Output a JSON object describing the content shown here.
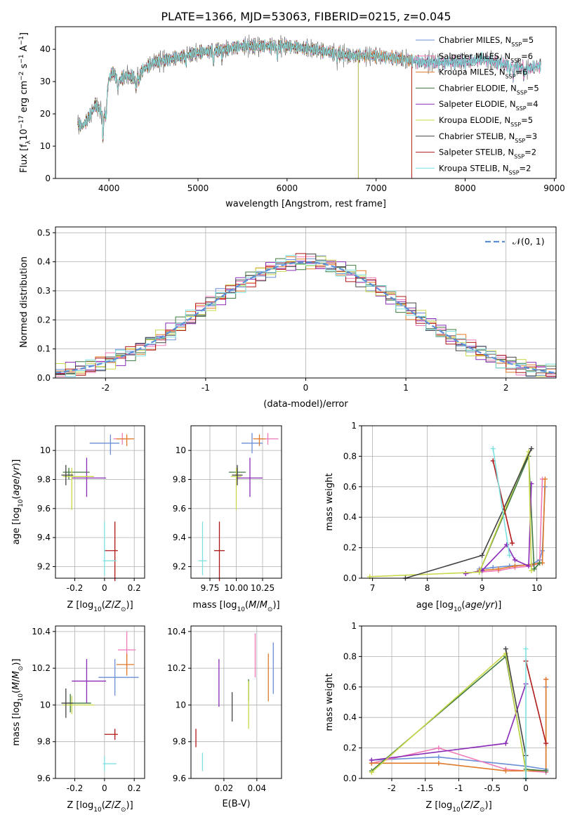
{
  "figure": {
    "title": "PLATE=1366, MJD=53063, FIBERID=0215, z=0.045",
    "colors": {
      "Chabrier MILES": "#6b8fd6",
      "Salpeter MILES": "#f07ab8",
      "Kroupa MILES": "#e07a28",
      "Chabrier ELODIE": "#3f7a3f",
      "Salpeter ELODIE": "#8a2bb8",
      "Kroupa ELODIE": "#c8d84a",
      "Chabrier STELIB": "#444444",
      "Salpeter STELIB": "#b01818",
      "Kroupa STELIB": "#7fe0e0"
    }
  },
  "chart_data": [
    {
      "id": "spectrum",
      "type": "line",
      "title": "PLATE=1366, MJD=53063, FIBERID=0215, z=0.045",
      "xlabel": "wavelength [Angstrom, rest frame]",
      "ylabel": "Flux [f_λ10^-17 erg cm^-2 s^-1 A^-1]",
      "xlim": [
        3400,
        9020
      ],
      "ylim": [
        0,
        47
      ],
      "xticks": [
        4000,
        5000,
        6000,
        7000,
        8000,
        9000
      ],
      "yticks": [
        0,
        10,
        20,
        30,
        40
      ],
      "legend_position": "top-right",
      "grid": false,
      "continuum": {
        "x": [
          3650,
          3700,
          3800,
          3850,
          3900,
          3950,
          4000,
          4050,
          4100,
          4200,
          4300,
          4400,
          4500,
          4700,
          5000,
          5300,
          5500,
          5800,
          6000,
          6300,
          6500,
          6700,
          7000,
          7300,
          7500,
          7700,
          8000,
          8200,
          8500,
          8700,
          8850
        ],
        "y": [
          17,
          16,
          20,
          23,
          21,
          19,
          31,
          33,
          30,
          32,
          31,
          34,
          36,
          37,
          39,
          40,
          41,
          41,
          41,
          40,
          39,
          38,
          38,
          37,
          36,
          36,
          36,
          37,
          35,
          34,
          35
        ]
      },
      "series": [
        {
          "name": "Chabrier MILES",
          "nssp": "5",
          "end": 8850
        },
        {
          "name": "Salpeter MILES",
          "nssp": "6",
          "end": 8850
        },
        {
          "name": "Kroupa MILES",
          "nssp": "6",
          "end": 7400
        },
        {
          "name": "Chabrier ELODIE",
          "nssp": "5",
          "end": 6800
        },
        {
          "name": "Salpeter ELODIE",
          "nssp": "4",
          "end": 6800
        },
        {
          "name": "Kroupa ELODIE",
          "nssp": "5",
          "end": 6800
        },
        {
          "name": "Chabrier STELIB",
          "nssp": "3",
          "end": 8850
        },
        {
          "name": "Salpeter STELIB",
          "nssp": "2",
          "end": 7400
        },
        {
          "name": "Kroupa STELIB",
          "nssp": "2",
          "end": 8850
        }
      ]
    },
    {
      "id": "residuals",
      "type": "line",
      "xlabel": "(data-model)/error",
      "ylabel": "Normed distribution",
      "xlim": [
        -2.5,
        2.5
      ],
      "ylim": [
        0,
        0.52
      ],
      "xticks": [
        -2,
        -1,
        0,
        1,
        2
      ],
      "yticks": [
        0.0,
        0.1,
        0.2,
        0.3,
        0.4,
        0.5
      ],
      "grid": true,
      "legend_position": "top-right",
      "legend": [
        "𝒩(0, 1)"
      ],
      "bin_width": 0.1
    },
    {
      "id": "age-vs-Z",
      "type": "scatter",
      "xlabel": "Z [log10(Z/Z⊙)]",
      "ylabel": "age  [log10(age/yr)]",
      "xlim": [
        -0.33,
        0.27
      ],
      "ylim": [
        9.12,
        10.17
      ],
      "xticks": [
        -0.2,
        0.0,
        0.2
      ],
      "yticks": [
        9.2,
        9.4,
        9.6,
        9.8,
        10.0
      ],
      "grid": true,
      "points": [
        {
          "series": "Chabrier MILES",
          "x": 0.04,
          "xerr": [
            0.14,
            0.06
          ],
          "y": 10.05,
          "yerr": [
            0.08,
            0.06
          ]
        },
        {
          "series": "Salpeter MILES",
          "x": 0.12,
          "xerr": [
            0.06,
            0.06
          ],
          "y": 10.08,
          "yerr": [
            0.04,
            0.04
          ]
        },
        {
          "series": "Kroupa MILES",
          "x": 0.15,
          "xerr": [
            0.07,
            0.05
          ],
          "y": 10.08,
          "yerr": [
            0.05,
            0.03
          ]
        },
        {
          "series": "Chabrier ELODIE",
          "x": -0.24,
          "xerr": [
            0.04,
            0.14
          ],
          "y": 9.85,
          "yerr": [
            0.05,
            0.03
          ]
        },
        {
          "series": "Salpeter ELODIE",
          "x": -0.12,
          "xerr": [
            0.1,
            0.13
          ],
          "y": 9.81,
          "yerr": [
            0.13,
            0.14
          ]
        },
        {
          "series": "Kroupa ELODIE",
          "x": -0.22,
          "xerr": [
            0.06,
            0.15
          ],
          "y": 9.82,
          "yerr": [
            0.23,
            0.06
          ]
        },
        {
          "series": "Chabrier STELIB",
          "x": -0.26,
          "xerr": [
            0.03,
            0.05
          ],
          "y": 9.83,
          "yerr": [
            0.07,
            0.07
          ]
        },
        {
          "series": "Salpeter STELIB",
          "x": 0.07,
          "xerr": [
            0.07,
            0.02
          ],
          "y": 9.31,
          "yerr": [
            0.21,
            0.2
          ]
        },
        {
          "series": "Kroupa STELIB",
          "x": 0.0,
          "xerr": [
            0.01,
            0.08
          ],
          "y": 9.24,
          "yerr": [
            0.1,
            0.27
          ]
        }
      ]
    },
    {
      "id": "age-vs-mass",
      "type": "scatter",
      "xlabel": "mass [log10(M/M⊙)]",
      "ylabel": "",
      "xlim": [
        9.57,
        10.43
      ],
      "ylim": [
        9.12,
        10.17
      ],
      "xticks": [
        9.75,
        10.0,
        10.25
      ],
      "xticklabels": [
        "9.75",
        "10.00",
        "10.25"
      ],
      "yticks": [
        9.2,
        9.4,
        9.6,
        9.8,
        10.0
      ],
      "grid": true,
      "points": [
        {
          "series": "Chabrier MILES",
          "x": 10.15,
          "xerr": [
            0.1,
            0.1
          ],
          "y": 10.05,
          "yerr": [
            0.07,
            0.07
          ]
        },
        {
          "series": "Salpeter MILES",
          "x": 10.3,
          "xerr": [
            0.1,
            0.1
          ],
          "y": 10.08,
          "yerr": [
            0.04,
            0.04
          ]
        },
        {
          "series": "Kroupa MILES",
          "x": 10.22,
          "xerr": [
            0.06,
            0.06
          ],
          "y": 10.08,
          "yerr": [
            0.05,
            0.03
          ]
        },
        {
          "series": "Chabrier ELODIE",
          "x": 10.01,
          "xerr": [
            0.08,
            0.08
          ],
          "y": 9.85,
          "yerr": [
            0.05,
            0.03
          ]
        },
        {
          "series": "Salpeter ELODIE",
          "x": 10.13,
          "xerr": [
            0.12,
            0.12
          ],
          "y": 9.81,
          "yerr": [
            0.13,
            0.14
          ]
        },
        {
          "series": "Kroupa ELODIE",
          "x": 10.0,
          "xerr": [
            0.05,
            0.05
          ],
          "y": 9.82,
          "yerr": [
            0.23,
            0.06
          ]
        },
        {
          "series": "Chabrier STELIB",
          "x": 10.01,
          "xerr": [
            0.05,
            0.05
          ],
          "y": 9.83,
          "yerr": [
            0.07,
            0.07
          ]
        },
        {
          "series": "Salpeter STELIB",
          "x": 9.84,
          "xerr": [
            0.05,
            0.05
          ],
          "y": 9.31,
          "yerr": [
            0.21,
            0.2
          ]
        },
        {
          "series": "Kroupa STELIB",
          "x": 9.68,
          "xerr": [
            0.04,
            0.04
          ],
          "y": 9.24,
          "yerr": [
            0.1,
            0.27
          ]
        }
      ]
    },
    {
      "id": "massweight-vs-age",
      "type": "line",
      "xlabel": "age  [log10(age/yr)]",
      "ylabel": "mass weight",
      "xlim": [
        6.8,
        10.35
      ],
      "ylim": [
        0,
        1.0
      ],
      "xticks": [
        7,
        8,
        9,
        10
      ],
      "yticks": [
        0.0,
        0.2,
        0.4,
        0.6,
        0.8,
        1.0
      ],
      "grid": true,
      "series": [
        {
          "name": "Chabrier MILES",
          "x": [
            8.95,
            9.2,
            9.5,
            9.9,
            10.05,
            10.1,
            10.15
          ],
          "y": [
            0.06,
            0.07,
            0.08,
            0.09,
            0.12,
            0.18,
            0.6
          ]
        },
        {
          "name": "Salpeter MILES",
          "x": [
            8.95,
            9.3,
            9.6,
            9.9,
            10.05,
            10.1
          ],
          "y": [
            0.04,
            0.05,
            0.07,
            0.08,
            0.1,
            0.65
          ]
        },
        {
          "name": "Kroupa MILES",
          "x": [
            8.95,
            9.3,
            9.6,
            9.9,
            10.05,
            10.1,
            10.15
          ],
          "y": [
            0.05,
            0.06,
            0.08,
            0.09,
            0.1,
            0.1,
            0.65
          ]
        },
        {
          "name": "Chabrier ELODIE",
          "x": [
            8.95,
            9.85,
            9.95,
            10.05
          ],
          "y": [
            0.04,
            0.8,
            0.06,
            0.1
          ]
        },
        {
          "name": "Salpeter ELODIE",
          "x": [
            8.7,
            9.0,
            9.45,
            9.6,
            9.85,
            9.9
          ],
          "y": [
            0.03,
            0.05,
            0.22,
            0.12,
            0.08,
            0.62
          ]
        },
        {
          "name": "Kroupa ELODIE",
          "x": [
            6.95,
            8.95,
            9.85,
            9.9
          ],
          "y": [
            0.01,
            0.04,
            0.83,
            0.05
          ]
        },
        {
          "name": "Chabrier STELIB",
          "x": [
            7.6,
            9.0,
            9.9
          ],
          "y": [
            0.0,
            0.15,
            0.85
          ]
        },
        {
          "name": "Salpeter STELIB",
          "x": [
            9.2,
            9.55
          ],
          "y": [
            0.77,
            0.23
          ]
        },
        {
          "name": "Kroupa STELIB",
          "x": [
            9.2,
            9.5
          ],
          "y": [
            0.85,
            0.15
          ]
        }
      ]
    },
    {
      "id": "mass-vs-Z",
      "type": "scatter",
      "xlabel": "Z [log10(Z/Z⊙)]",
      "ylabel": "mass [log10(M/M⊙)]",
      "xlim": [
        -0.33,
        0.27
      ],
      "ylim": [
        9.6,
        10.43
      ],
      "xticks": [
        -0.2,
        0.0,
        0.2
      ],
      "yticks": [
        9.6,
        9.8,
        10.0,
        10.2,
        10.4
      ],
      "grid": true,
      "points": [
        {
          "series": "Chabrier MILES",
          "x": 0.07,
          "xerr": [
            0.11,
            0.16
          ],
          "y": 10.15,
          "yerr": [
            0.1,
            0.1
          ]
        },
        {
          "series": "Salpeter MILES",
          "x": 0.15,
          "xerr": [
            0.06,
            0.06
          ],
          "y": 10.3,
          "yerr": [
            0.1,
            0.1
          ]
        },
        {
          "series": "Kroupa MILES",
          "x": 0.15,
          "xerr": [
            0.07,
            0.05
          ],
          "y": 10.22,
          "yerr": [
            0.06,
            0.06
          ]
        },
        {
          "series": "Chabrier ELODIE",
          "x": -0.23,
          "xerr": [
            0.04,
            0.14
          ],
          "y": 10.01,
          "yerr": [
            0.05,
            0.05
          ]
        },
        {
          "series": "Salpeter ELODIE",
          "x": -0.12,
          "xerr": [
            0.1,
            0.13
          ],
          "y": 10.13,
          "yerr": [
            0.12,
            0.12
          ]
        },
        {
          "series": "Kroupa ELODIE",
          "x": -0.22,
          "xerr": [
            0.06,
            0.15
          ],
          "y": 10.0,
          "yerr": [
            0.05,
            0.05
          ]
        },
        {
          "series": "Chabrier STELIB",
          "x": -0.26,
          "xerr": [
            0.03,
            0.05
          ],
          "y": 10.01,
          "yerr": [
            0.08,
            0.08
          ]
        },
        {
          "series": "Salpeter STELIB",
          "x": 0.07,
          "xerr": [
            0.07,
            0.02
          ],
          "y": 9.84,
          "yerr": [
            0.03,
            0.03
          ]
        },
        {
          "series": "Kroupa STELIB",
          "x": 0.0,
          "xerr": [
            0.01,
            0.08
          ],
          "y": 9.68,
          "yerr": [
            0.04,
            0.04
          ]
        }
      ]
    },
    {
      "id": "mass-vs-ebv",
      "type": "scatter",
      "xlabel": "E(B-V)",
      "ylabel": "",
      "xlim": [
        0.0,
        0.055
      ],
      "ylim": [
        9.6,
        10.43
      ],
      "xticks": [
        0.02,
        0.04
      ],
      "yticks": [
        9.6,
        9.8,
        10.0,
        10.2,
        10.4
      ],
      "grid": true,
      "points": [
        {
          "series": "Chabrier MILES",
          "x": 0.05,
          "y": 10.2,
          "yerr": [
            0.14,
            0.14
          ]
        },
        {
          "series": "Salpeter MILES",
          "x": 0.039,
          "y": 10.27,
          "yerr": [
            0.12,
            0.12
          ]
        },
        {
          "series": "Kroupa MILES",
          "x": 0.047,
          "y": 10.15,
          "yerr": [
            0.13,
            0.13
          ]
        },
        {
          "series": "Chabrier ELODIE",
          "x": 0.035,
          "y": 10.08,
          "yerr": [
            0.06,
            0.06
          ]
        },
        {
          "series": "Salpeter ELODIE",
          "x": 0.017,
          "y": 10.12,
          "yerr": [
            0.13,
            0.13
          ]
        },
        {
          "series": "Kroupa ELODIE",
          "x": 0.035,
          "y": 10.0,
          "yerr": [
            0.13,
            0.13
          ]
        },
        {
          "series": "Chabrier STELIB",
          "x": 0.025,
          "y": 9.99,
          "yerr": [
            0.08,
            0.08
          ]
        },
        {
          "series": "Salpeter STELIB",
          "x": 0.003,
          "y": 9.82,
          "yerr": [
            0.05,
            0.05
          ]
        },
        {
          "series": "Kroupa STELIB",
          "x": 0.007,
          "y": 9.69,
          "yerr": [
            0.05,
            0.05
          ]
        }
      ]
    },
    {
      "id": "massweight-vs-Z",
      "type": "line",
      "xlabel": "Z [log10(Z/Z⊙)]",
      "ylabel": "mass weight",
      "xlim": [
        -2.45,
        0.45
      ],
      "ylim": [
        0,
        1.0
      ],
      "xticks": [
        -2.0,
        -1.5,
        -1.0,
        -0.5,
        0.0
      ],
      "yticks": [
        0.0,
        0.2,
        0.4,
        0.6,
        0.8,
        1.0
      ],
      "grid": true,
      "series": [
        {
          "name": "Chabrier MILES",
          "x": [
            -2.3,
            -1.3,
            0.0,
            0.3,
            0.3
          ],
          "y": [
            0.12,
            0.14,
            0.08,
            0.06,
            0.6
          ]
        },
        {
          "name": "Salpeter MILES",
          "x": [
            -2.3,
            -1.3,
            -0.3,
            0.3,
            0.3
          ],
          "y": [
            0.1,
            0.2,
            0.06,
            0.04,
            0.65
          ]
        },
        {
          "name": "Kroupa MILES",
          "x": [
            -2.3,
            -1.3,
            -0.3,
            0.3,
            0.3
          ],
          "y": [
            0.1,
            0.1,
            0.05,
            0.05,
            0.65
          ]
        },
        {
          "name": "Chabrier ELODIE",
          "x": [
            -2.3,
            -0.3,
            0.0,
            0.3
          ],
          "y": [
            0.05,
            0.8,
            0.06,
            0.05
          ]
        },
        {
          "name": "Salpeter ELODIE",
          "x": [
            -2.3,
            -0.3,
            0.0
          ],
          "y": [
            0.12,
            0.23,
            0.62
          ]
        },
        {
          "name": "Kroupa ELODIE",
          "x": [
            -2.3,
            -0.3,
            0.0
          ],
          "y": [
            0.04,
            0.82,
            0.05
          ]
        },
        {
          "name": "Chabrier STELIB",
          "x": [
            -0.3,
            0.0,
            0.0
          ],
          "y": [
            0.85,
            0.15,
            0.0
          ]
        },
        {
          "name": "Salpeter STELIB",
          "x": [
            0.0,
            0.3
          ],
          "y": [
            0.77,
            0.23
          ]
        },
        {
          "name": "Kroupa STELIB",
          "x": [
            0.0,
            0.0
          ],
          "y": [
            0.85,
            0.0
          ]
        }
      ]
    }
  ]
}
